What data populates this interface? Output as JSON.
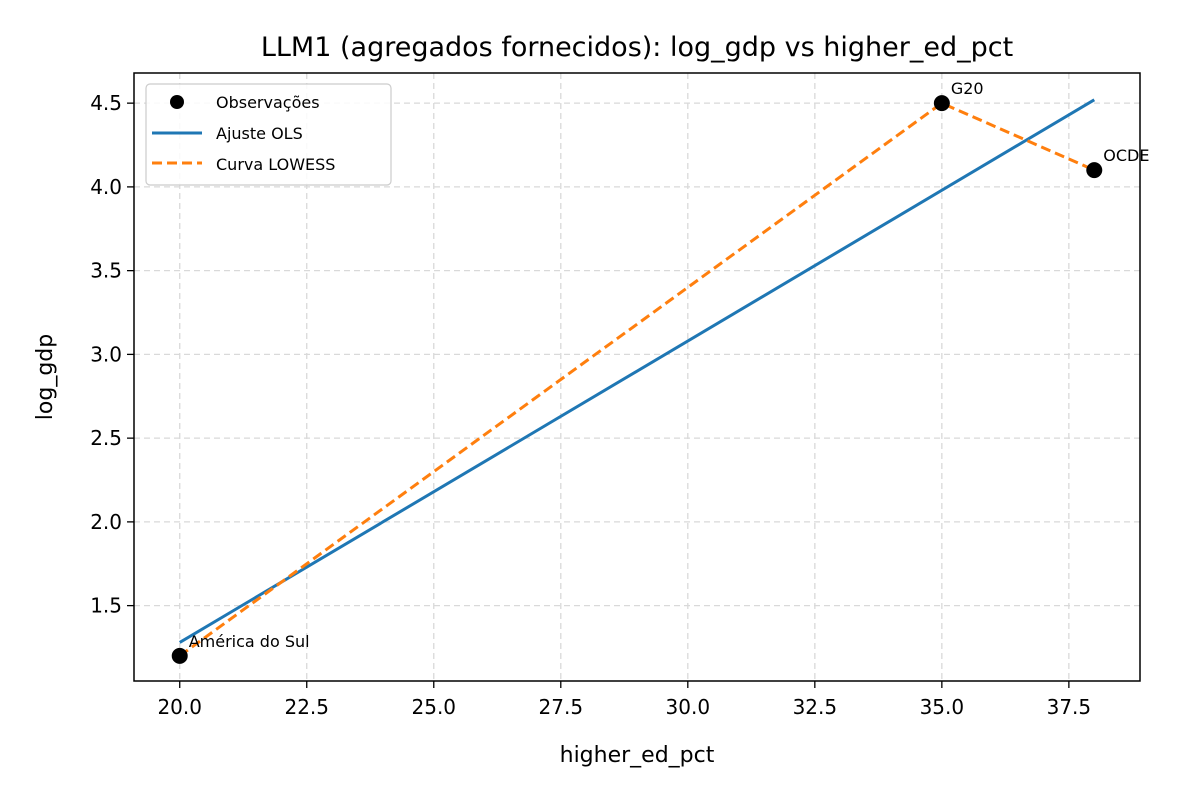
{
  "chart_data": {
    "type": "scatter",
    "title": "LLM1 (agregados fornecidos): log_gdp vs higher_ed_pct",
    "xlabel": "higher_ed_pct",
    "ylabel": "log_gdp",
    "xlim": [
      19.1,
      38.9
    ],
    "ylim": [
      1.05,
      4.68
    ],
    "x_ticks": [
      20.0,
      22.5,
      25.0,
      27.5,
      30.0,
      32.5,
      35.0,
      37.5
    ],
    "x_tick_labels": [
      "20.0",
      "22.5",
      "25.0",
      "27.5",
      "30.0",
      "32.5",
      "35.0",
      "37.5"
    ],
    "y_ticks": [
      1.5,
      2.0,
      2.5,
      3.0,
      3.5,
      4.0,
      4.5
    ],
    "y_tick_labels": [
      "1.5",
      "2.0",
      "2.5",
      "3.0",
      "3.5",
      "4.0",
      "4.5"
    ],
    "grid": true,
    "legend_position": "top-left",
    "points": [
      {
        "label": "América do Sul",
        "x": 20.0,
        "y": 1.2
      },
      {
        "label": "G20",
        "x": 35.0,
        "y": 4.5
      },
      {
        "label": "OCDE",
        "x": 38.0,
        "y": 4.1
      }
    ],
    "series": [
      {
        "name": "Observações",
        "kind": "scatter",
        "color": "#000000"
      },
      {
        "name": "Ajuste OLS",
        "kind": "line",
        "color": "#1f77b4",
        "x": [
          20.0,
          38.0
        ],
        "y": [
          1.28,
          4.52
        ]
      },
      {
        "name": "Curva LOWESS",
        "kind": "dashed-line",
        "color": "#ff7f0e",
        "x": [
          20.0,
          35.0,
          38.0
        ],
        "y": [
          1.2,
          4.5,
          4.1
        ]
      }
    ]
  }
}
